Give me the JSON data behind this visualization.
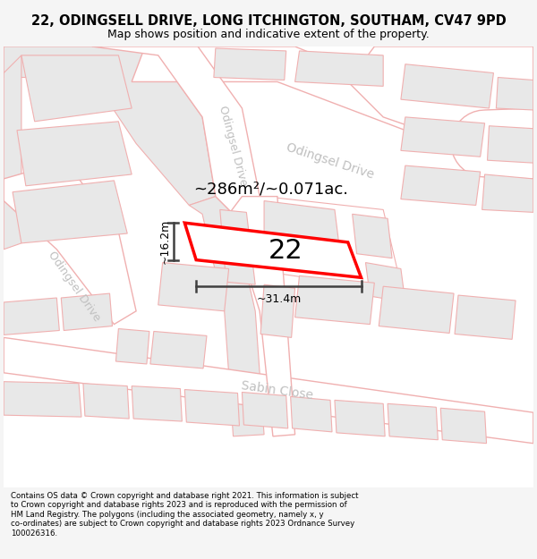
{
  "title_line1": "22, ODINGSELL DRIVE, LONG ITCHINGTON, SOUTHAM, CV47 9PD",
  "title_line2": "Map shows position and indicative extent of the property.",
  "footer_lines": "Contains OS data © Crown copyright and database right 2021. This information is subject\nto Crown copyright and database rights 2023 and is reproduced with the permission of\nHM Land Registry. The polygons (including the associated geometry, namely x, y\nco-ordinates) are subject to Crown copyright and database rights 2023 Ordnance Survey\n100026316.",
  "area_label": "~286m²/~0.071ac.",
  "number_label": "22",
  "width_label": "~31.4m",
  "height_label": "~16.2m",
  "bg_color": "#f5f5f5",
  "map_bg": "#ffffff",
  "building_fill": "#e8e8e8",
  "building_edge": "#f0b0b0",
  "road_fill": "#ffffff",
  "road_edge": "#f0b0b0",
  "plot_stroke": "#ff0000",
  "road_label_color": "#c0c0c0",
  "dim_color": "#404040"
}
